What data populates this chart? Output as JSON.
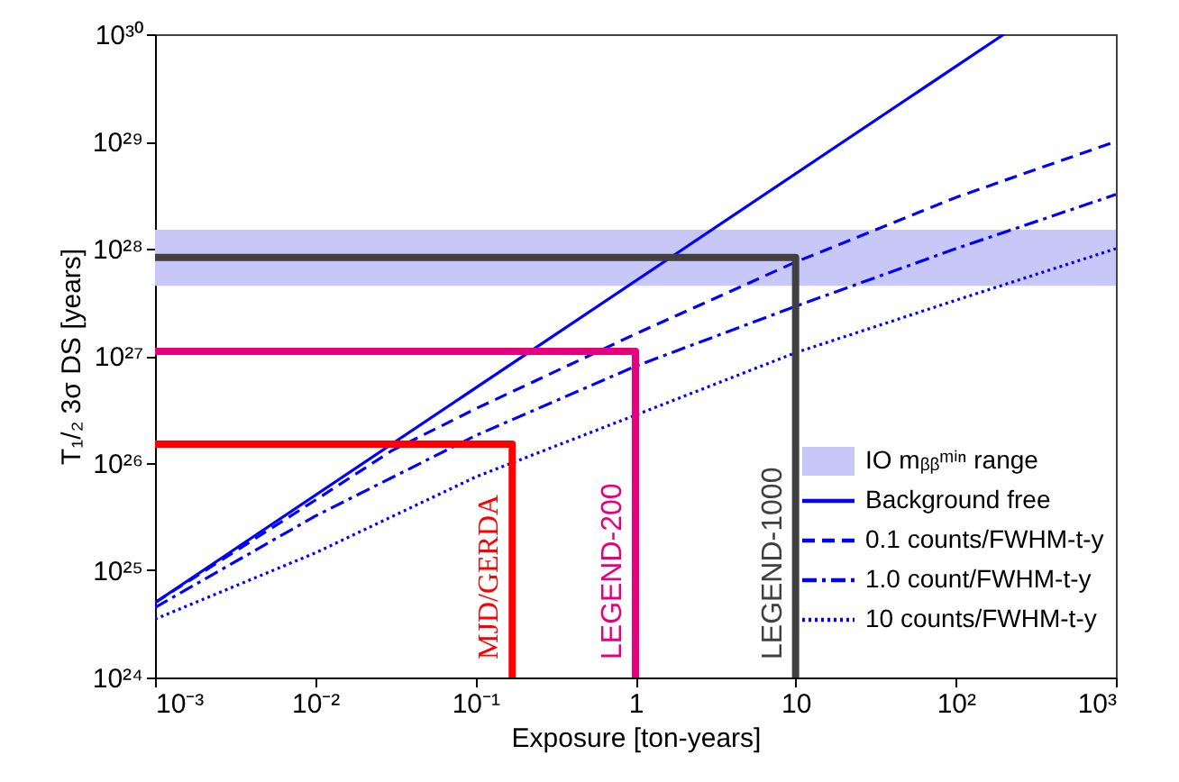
{
  "chart_data": {
    "type": "line",
    "xlabel": "Exposure [ton-years]",
    "ylabel": "T₁/₂ 3σ DS [years]",
    "log": "xy",
    "grid": false,
    "legend": "bottom right",
    "xlim": [
      0.001,
      1000
    ],
    "ylim": [
      1e+24,
      1e+30
    ],
    "xticks": [
      {
        "value": 0.001,
        "label": "10⁻³"
      },
      {
        "value": 0.01,
        "label": "10⁻²"
      },
      {
        "value": 0.1,
        "label": "10⁻¹"
      },
      1,
      10,
      {
        "value": 100,
        "label": "10²"
      },
      {
        "value": 1000,
        "label": "10³"
      }
    ],
    "yticks": [
      {
        "value": 1e+24,
        "label": "10²⁴"
      },
      {
        "value": 1e+25,
        "label": "10²⁵"
      },
      {
        "value": 1e+26,
        "label": "10²⁶"
      },
      {
        "value": 1e+27,
        "label": "10²⁷"
      },
      {
        "value": 1e+28,
        "label": "10²⁸"
      },
      {
        "value": 1e+29,
        "label": "10²⁹"
      },
      {
        "value": 1e+30,
        "label": "10³⁰"
      }
    ],
    "bands": [
      {
        "axis": "y",
        "from": 4.5e+27,
        "to": 1.5e+28,
        "label": "IO mᵦᵦᵐⁱⁿ range",
        "color": "#c8c8f8"
      }
    ],
    "series": [
      {
        "name": "Background free",
        "color": "#0000ff",
        "line_style": "solid",
        "x": [
          0.001,
          200
        ],
        "values": [
          5e+24,
          1e+30
        ]
      },
      {
        "name": "0.1 counts/FWHM-t-y",
        "color": "#0000ff",
        "line_style": "dashed",
        "x": [
          0.001,
          0.01,
          0.03,
          0.1,
          1,
          10,
          100,
          1000
        ],
        "values": [
          5e+24,
          4.5e+25,
          1.3e+26,
          3.2e+26,
          1.6e+27,
          7.5e+27,
          3e+28,
          1e+29
        ]
      },
      {
        "name": "1.0 count/FWHM-t-y",
        "color": "#0000ff",
        "line_style": "dashdot",
        "x": [
          0.001,
          0.01,
          0.1,
          1,
          10,
          100,
          1000
        ],
        "values": [
          4.5e+24,
          3.2e+25,
          1.8e+26,
          8e+26,
          2.9e+27,
          1e+28,
          3.2e+28
        ]
      },
      {
        "name": "10 counts/FWHM-t-y",
        "color": "#0000ff",
        "line_style": "dotted",
        "x": [
          0.001,
          0.01,
          0.1,
          1,
          10,
          100,
          1000
        ],
        "values": [
          3.5e+24,
          1.45e+25,
          7.4e+25,
          2.8e+26,
          1.07e+27,
          3.3e+27,
          1e+28
        ]
      },
      {
        "color": "#ff0000",
        "line_style": "solid",
        "x": [
          0.001,
          0.17,
          0.17
        ],
        "values": [
          1.5e+26,
          1.5e+26,
          1e+24
        ]
      },
      {
        "color": "#e6007e",
        "line_style": "solid",
        "x": [
          0.001,
          1,
          1
        ],
        "values": [
          1.1e+27,
          1.1e+27,
          1e+24
        ]
      },
      {
        "color": "#404040",
        "line_style": "solid",
        "x": [
          0.001,
          10,
          10
        ],
        "values": [
          8.3e+27,
          8.3e+27,
          1e+24
        ]
      }
    ],
    "annotations": [
      {
        "text": "MJD/GERDA",
        "x": 0.17,
        "y": 1e+24
      },
      {
        "text": "LEGEND-200",
        "x": 1,
        "y": 1e+24
      },
      {
        "text": "LEGEND-1000",
        "x": 10,
        "y": 1e+24
      }
    ]
  }
}
